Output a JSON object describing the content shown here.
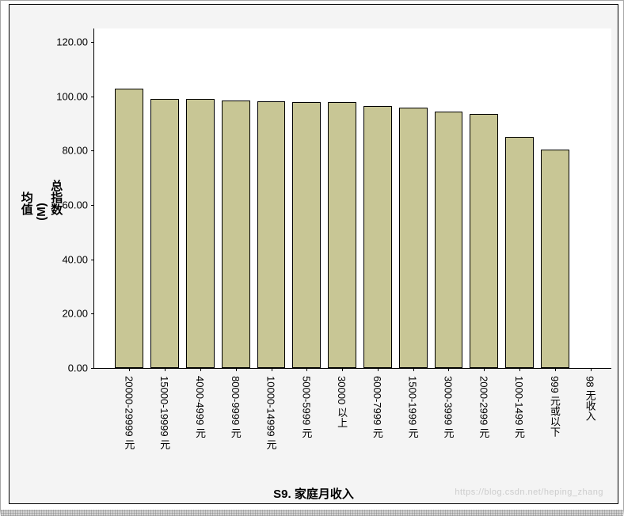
{
  "chart": {
    "type": "bar",
    "y_axis": {
      "label": "均值(M)总指数",
      "min": 0,
      "max": 125,
      "ticks": [
        0.0,
        20.0,
        40.0,
        60.0,
        80.0,
        100.0,
        120.0
      ],
      "tick_labels": [
        "0.00",
        "20.00",
        "40.00",
        "60.00",
        "80.00",
        "100.00",
        "120.00"
      ],
      "label_fontsize": 15,
      "tick_fontsize": 13
    },
    "x_axis": {
      "label": "S9. 家庭月收入",
      "label_fontsize": 15,
      "tick_fontsize": 13
    },
    "categories": [
      "20000-29999 元",
      "15000-19999 元",
      "4000-4999 元",
      "8000-9999 元",
      "10000-14999 元",
      "5000-5999 元",
      "30000 以上",
      "6000-7999 元",
      "1500-1999 元",
      "3000-3999 元",
      "2000-2999 元",
      "1000-1499 元",
      "999 元或以下",
      "98 无收入"
    ],
    "values": [
      103.0,
      99.0,
      99.0,
      98.5,
      98.3,
      98.0,
      97.8,
      96.5,
      96.0,
      94.5,
      93.5,
      85.0,
      80.5,
      0.0
    ],
    "bar_fill": "#c8c695",
    "bar_border": "#000000",
    "bar_width_ratio": 0.8,
    "plot_background": "#ffffff",
    "frame_background": "#f4f4f4",
    "axis_color": "#000000",
    "watermark": "https://blog.csdn.net/heping_zhang"
  }
}
